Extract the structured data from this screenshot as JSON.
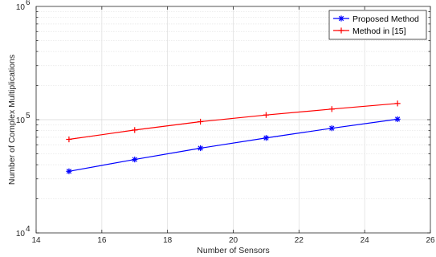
{
  "chart_data": {
    "type": "line",
    "title": "",
    "xlabel": "Number of Sensors",
    "ylabel": "Number of Complex Multiplications",
    "xlim": [
      14,
      26
    ],
    "ylim": [
      10000,
      1000000
    ],
    "yscale": "log",
    "grid": true,
    "legend_position": "top-right",
    "x_ticks": [
      "14",
      "16",
      "18",
      "20",
      "22",
      "24",
      "26"
    ],
    "y_ticks": [
      {
        "value": 10000,
        "base": "10",
        "exp": "4"
      },
      {
        "value": 100000,
        "base": "10",
        "exp": "5"
      },
      {
        "value": 1000000,
        "base": "10",
        "exp": "6"
      }
    ],
    "x": [
      15,
      17,
      19,
      21,
      23,
      25
    ],
    "series": [
      {
        "name": "Proposed Method",
        "color": "#0000ff",
        "marker": "asterisk",
        "values": [
          35000,
          44500,
          56000,
          69000,
          84000,
          101000
        ]
      },
      {
        "name": "Method in [15]",
        "color": "#ff0000",
        "marker": "plus",
        "values": [
          67000,
          81000,
          96000,
          110000,
          124000,
          139000
        ]
      }
    ]
  }
}
